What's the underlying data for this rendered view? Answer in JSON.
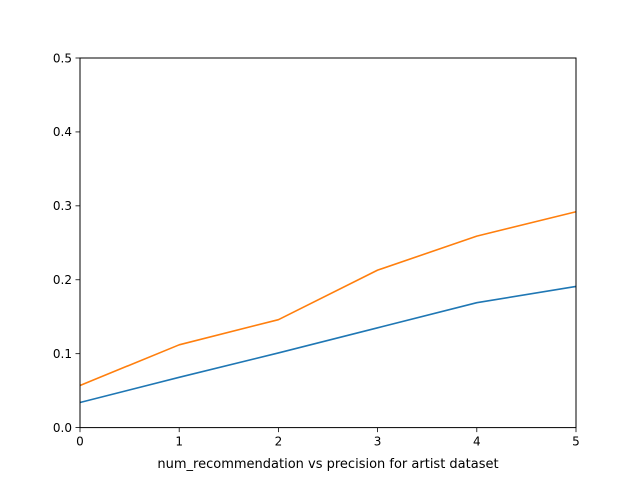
{
  "chart_data": {
    "type": "line",
    "title": "",
    "xlabel": "num_recommendation vs precision for artist dataset",
    "ylabel": "",
    "x": [
      0,
      1,
      2,
      3,
      4,
      5
    ],
    "xlim": [
      0,
      5
    ],
    "ylim": [
      0,
      0.5
    ],
    "xticks": [
      "0",
      "1",
      "2",
      "3",
      "4",
      "5"
    ],
    "yticks": [
      "0.0",
      "0.1",
      "0.2",
      "0.3",
      "0.4",
      "0.5"
    ],
    "grid": false,
    "legend": "none",
    "series": [
      {
        "color": "#1f77b4",
        "values": [
          0.034,
          0.068,
          0.101,
          0.135,
          0.169,
          0.191
        ]
      },
      {
        "color": "#ff7f0e",
        "values": [
          0.057,
          0.112,
          0.146,
          0.213,
          0.259,
          0.292
        ]
      }
    ]
  }
}
